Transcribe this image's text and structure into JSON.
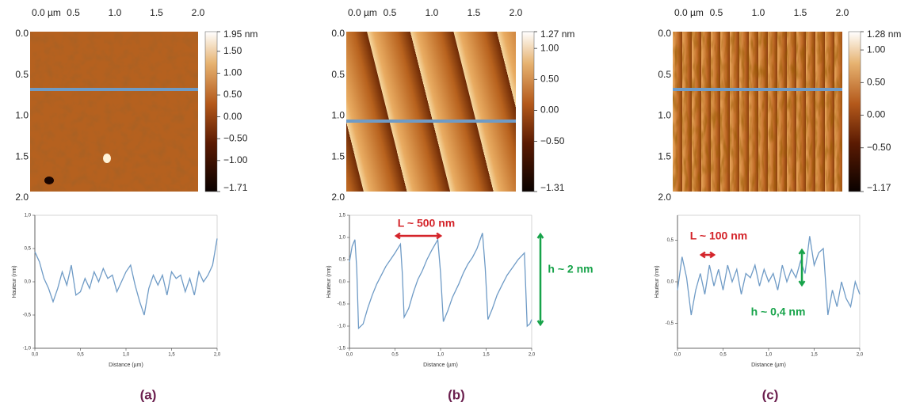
{
  "chart_data": [
    {
      "type": "line",
      "x_label": "Distance (µm)",
      "y_label": "Hauteur (nm)",
      "color": "#6f9bc6",
      "xlim": [
        0,
        2
      ],
      "xticks": [
        {
          "value": 0,
          "label": "0,0"
        },
        {
          "value": 0.5,
          "label": "0,5"
        },
        {
          "value": 1,
          "label": "1,0"
        },
        {
          "value": 1.5,
          "label": "1,5"
        },
        {
          "value": 2,
          "label": "2,0"
        }
      ],
      "ylim": [
        -1,
        1
      ],
      "yticks": [
        {
          "value": -1,
          "label": "-1,0"
        },
        {
          "value": -0.5,
          "label": "-0,5"
        },
        {
          "value": 0,
          "label": "0,0"
        },
        {
          "value": 0.5,
          "label": "0,5"
        },
        {
          "value": 1,
          "label": "1,0"
        }
      ],
      "x": [
        0,
        0.05,
        0.1,
        0.15,
        0.2,
        0.25,
        0.3,
        0.35,
        0.4,
        0.45,
        0.5,
        0.55,
        0.6,
        0.65,
        0.7,
        0.75,
        0.8,
        0.85,
        0.9,
        0.95,
        1,
        1.05,
        1.1,
        1.15,
        1.2,
        1.25,
        1.3,
        1.35,
        1.4,
        1.45,
        1.5,
        1.55,
        1.6,
        1.65,
        1.7,
        1.75,
        1.8,
        1.85,
        1.9,
        1.95,
        2
      ],
      "values": [
        0.45,
        0.3,
        0.05,
        -0.1,
        -0.3,
        -0.1,
        0.15,
        -0.05,
        0.25,
        -0.2,
        -0.15,
        0.05,
        -0.1,
        0.15,
        0,
        0.2,
        0.05,
        0.1,
        -0.15,
        0,
        0.15,
        0.25,
        -0.05,
        -0.3,
        -0.5,
        -0.1,
        0.1,
        -0.05,
        0.1,
        -0.2,
        0.15,
        0.05,
        0.1,
        -0.15,
        0.05,
        -0.2,
        0.15,
        0,
        0.1,
        0.25,
        0.65
      ],
      "annotations": []
    },
    {
      "type": "line",
      "x_label": "Distance (µm)",
      "y_label": "Hauteur (nm)",
      "color": "#6f9bc6",
      "xlim": [
        0,
        2
      ],
      "xticks": [
        {
          "value": 0,
          "label": "0,0"
        },
        {
          "value": 0.5,
          "label": "0,5"
        },
        {
          "value": 1,
          "label": "1,0"
        },
        {
          "value": 1.5,
          "label": "1,5"
        },
        {
          "value": 2,
          "label": "2,0"
        }
      ],
      "ylim": [
        -1.5,
        1.5
      ],
      "yticks": [
        {
          "value": -1.5,
          "label": "-1,5"
        },
        {
          "value": -1,
          "label": "-1,0"
        },
        {
          "value": -0.5,
          "label": "-0,5"
        },
        {
          "value": 0,
          "label": "0,0"
        },
        {
          "value": 0.5,
          "label": "0,5"
        },
        {
          "value": 1,
          "label": "1,0"
        },
        {
          "value": 1.5,
          "label": "1,5"
        }
      ],
      "x": [
        0,
        0.03,
        0.06,
        0.08,
        0.1,
        0.15,
        0.2,
        0.25,
        0.3,
        0.35,
        0.4,
        0.45,
        0.5,
        0.56,
        0.58,
        0.6,
        0.65,
        0.7,
        0.75,
        0.8,
        0.85,
        0.9,
        0.97,
        1,
        1.03,
        1.08,
        1.13,
        1.2,
        1.25,
        1.3,
        1.35,
        1.4,
        1.46,
        1.49,
        1.52,
        1.57,
        1.62,
        1.68,
        1.73,
        1.8,
        1.85,
        1.92,
        1.95,
        1.98,
        2
      ],
      "values": [
        0.45,
        0.8,
        0.95,
        0.3,
        -1.05,
        -0.95,
        -0.6,
        -0.3,
        -0.05,
        0.15,
        0.35,
        0.5,
        0.65,
        0.85,
        0.2,
        -0.8,
        -0.6,
        -0.25,
        0.05,
        0.25,
        0.5,
        0.7,
        0.95,
        0.2,
        -0.9,
        -0.65,
        -0.35,
        -0.05,
        0.2,
        0.4,
        0.55,
        0.75,
        1.1,
        0.3,
        -0.85,
        -0.6,
        -0.3,
        -0.05,
        0.15,
        0.35,
        0.5,
        0.65,
        -1,
        -0.95,
        -0.85
      ],
      "annotations": [
        "L ~ 500 nm",
        "h ~ 2 nm"
      ]
    },
    {
      "type": "line",
      "x_label": "Distance (µm)",
      "y_label": "Hauteur (nm)",
      "color": "#6f9bc6",
      "xlim": [
        0,
        2
      ],
      "xticks": [
        {
          "value": 0,
          "label": "0,0"
        },
        {
          "value": 0.5,
          "label": "0,5"
        },
        {
          "value": 1,
          "label": "1,0"
        },
        {
          "value": 1.5,
          "label": "1,5"
        },
        {
          "value": 2,
          "label": "2,0"
        }
      ],
      "ylim": [
        -0.8,
        0.8
      ],
      "yticks": [
        {
          "value": -0.5,
          "label": "-0,5"
        },
        {
          "value": 0,
          "label": "0,0"
        },
        {
          "value": 0.5,
          "label": "0,5"
        }
      ],
      "x": [
        0,
        0.05,
        0.1,
        0.15,
        0.2,
        0.25,
        0.3,
        0.35,
        0.4,
        0.45,
        0.5,
        0.55,
        0.6,
        0.65,
        0.7,
        0.75,
        0.8,
        0.85,
        0.9,
        0.95,
        1,
        1.05,
        1.1,
        1.15,
        1.2,
        1.25,
        1.3,
        1.35,
        1.4,
        1.45,
        1.5,
        1.55,
        1.6,
        1.65,
        1.7,
        1.75,
        1.8,
        1.85,
        1.9,
        1.95,
        2
      ],
      "values": [
        -0.1,
        0.3,
        0.05,
        -0.4,
        -0.1,
        0.1,
        -0.15,
        0.2,
        -0.05,
        0.15,
        -0.1,
        0.2,
        0,
        0.15,
        -0.15,
        0.1,
        0.05,
        0.2,
        -0.05,
        0.15,
        0,
        0.1,
        -0.1,
        0.2,
        0,
        0.15,
        0.05,
        0.25,
        0.1,
        0.55,
        0.2,
        0.35,
        0.4,
        -0.4,
        -0.1,
        -0.3,
        0,
        -0.2,
        -0.3,
        0,
        -0.15
      ],
      "annotations": [
        "L ~ 100 nm",
        "h ~ 0,4 nm"
      ]
    }
  ],
  "images": [
    {
      "label": "(a)",
      "xticks": [
        {
          "value": 0,
          "label": "0.0 µm"
        },
        {
          "value": 0.5,
          "label": "0.5"
        },
        {
          "value": 1,
          "label": "1.0"
        },
        {
          "value": 1.5,
          "label": "1.5"
        },
        {
          "value": 2,
          "label": "2.0"
        }
      ],
      "yticks": [
        {
          "value": 0,
          "label": "0.0"
        },
        {
          "value": 0.5,
          "label": "0.5"
        },
        {
          "value": 1,
          "label": "1.0"
        },
        {
          "value": 1.5,
          "label": "1.5"
        },
        {
          "value": 2,
          "label": "2.0"
        }
      ],
      "clim": [
        -1.71,
        1.95
      ],
      "colorbar_ticks": [
        {
          "value": 1.95,
          "label": "1.95 nm"
        },
        {
          "value": 1.5,
          "label": "1.50"
        },
        {
          "value": 1,
          "label": "1.00"
        },
        {
          "value": 0.5,
          "label": "0.50"
        },
        {
          "value": 0,
          "label": "0.00"
        },
        {
          "value": -0.5,
          "label": "−0.50"
        },
        {
          "value": -1,
          "label": "−1.00"
        },
        {
          "value": -1.71,
          "label": "−1.71"
        }
      ]
    },
    {
      "label": "(b)",
      "xticks": [
        {
          "value": 0,
          "label": "0.0 µm"
        },
        {
          "value": 0.5,
          "label": "0.5"
        },
        {
          "value": 1,
          "label": "1.0"
        },
        {
          "value": 1.5,
          "label": "1.5"
        },
        {
          "value": 2,
          "label": "2.0"
        }
      ],
      "yticks": [
        {
          "value": 0,
          "label": "0.0"
        },
        {
          "value": 0.5,
          "label": "0.5"
        },
        {
          "value": 1,
          "label": "1.0"
        },
        {
          "value": 1.5,
          "label": "1.5"
        },
        {
          "value": 2,
          "label": "2.0"
        }
      ],
      "clim": [
        -1.31,
        1.27
      ],
      "colorbar_ticks": [
        {
          "value": 1.27,
          "label": "1.27 nm"
        },
        {
          "value": 1,
          "label": "1.00"
        },
        {
          "value": 0.5,
          "label": "0.50"
        },
        {
          "value": 0,
          "label": "0.00"
        },
        {
          "value": -0.5,
          "label": "−0.50"
        },
        {
          "value": -1.31,
          "label": "−1.31"
        }
      ]
    },
    {
      "label": "(c)",
      "xticks": [
        {
          "value": 0,
          "label": "0.0 µm"
        },
        {
          "value": 0.5,
          "label": "0.5"
        },
        {
          "value": 1,
          "label": "1.0"
        },
        {
          "value": 1.5,
          "label": "1.5"
        },
        {
          "value": 2,
          "label": "2.0"
        }
      ],
      "yticks": [
        {
          "value": 0,
          "label": "0.0"
        },
        {
          "value": 0.5,
          "label": "0.5"
        },
        {
          "value": 1,
          "label": "1.0"
        },
        {
          "value": 1.5,
          "label": "1.5"
        },
        {
          "value": 2,
          "label": "2.0"
        }
      ],
      "clim": [
        -1.17,
        1.28
      ],
      "colorbar_ticks": [
        {
          "value": 1.28,
          "label": "1.28 nm"
        },
        {
          "value": 1,
          "label": "1.00"
        },
        {
          "value": 0.5,
          "label": "0.50"
        },
        {
          "value": 0,
          "label": "0.00"
        },
        {
          "value": -0.5,
          "label": "−0.50"
        },
        {
          "value": -1.17,
          "label": "−1.17"
        }
      ]
    }
  ]
}
